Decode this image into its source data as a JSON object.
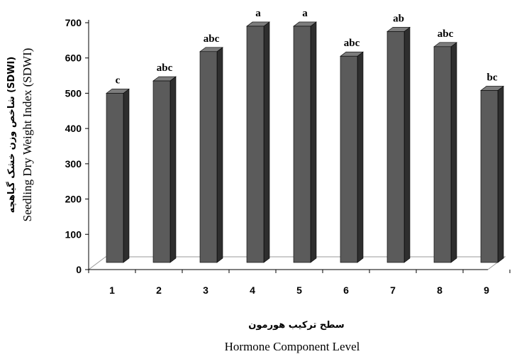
{
  "chart_data": {
    "type": "bar",
    "categories": [
      "1",
      "2",
      "3",
      "4",
      "5",
      "6",
      "7",
      "8",
      "9"
    ],
    "values": [
      500,
      535,
      618,
      690,
      690,
      605,
      675,
      632,
      508
    ],
    "significance_letters": [
      "c",
      "abc",
      "abc",
      "a",
      "a",
      "abc",
      "ab",
      "abc",
      "bc"
    ],
    "ylim": [
      0,
      700
    ],
    "yticks": [
      "0",
      "100",
      "200",
      "300",
      "400",
      "500",
      "600",
      "700"
    ],
    "ylabel_fa": "شاخص وزن خشک گیاهچه (SDWI)",
    "ylabel_en": "Seedling Dry Weight Index (SDWI)",
    "xlabel_fa": "سطح ترکیب هورمون",
    "xlabel_en": "Hormone Component Level",
    "grid": false,
    "style": "3d-column",
    "colors": {
      "bar_front": "#5b5b5b",
      "bar_side": "#2e2e2e",
      "bar_top": "#7c7c7c",
      "floor": "#ffffff",
      "axis": "#000000"
    }
  }
}
